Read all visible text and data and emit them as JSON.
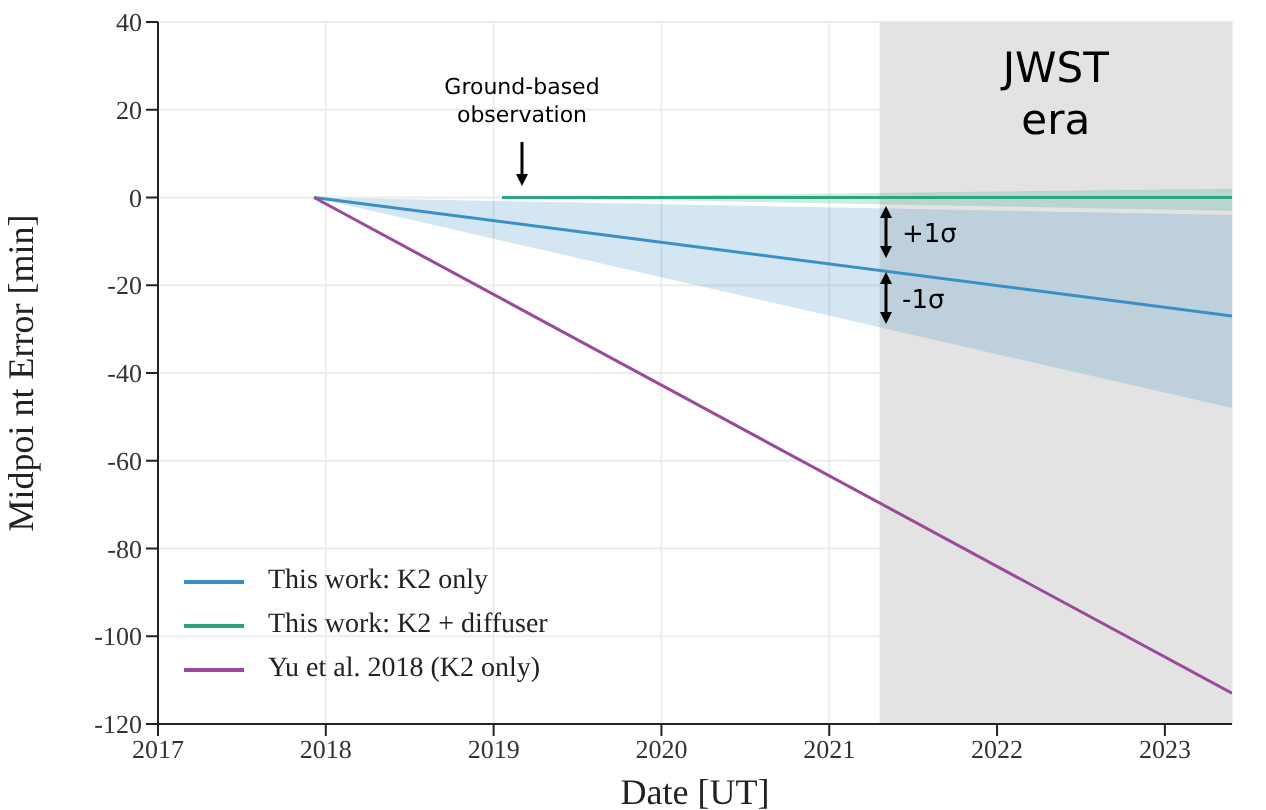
{
  "chart_data": {
    "type": "line",
    "xlabel": "Date [UT]",
    "ylabel": "Midpoi nt Error [min]",
    "xlim": [
      2017,
      2023.4
    ],
    "xticks": [
      2017,
      2018,
      2019,
      2020,
      2021,
      2022,
      2023
    ],
    "ylim": [
      -120,
      40
    ],
    "yticks": [
      -120,
      -100,
      -80,
      -60,
      -40,
      -20,
      0,
      20,
      40
    ],
    "grid": true,
    "legend": "bottom left",
    "marker": "none",
    "line_style": "solid",
    "series": [
      {
        "name": "This work: K2 only",
        "color": "#3a8fc4",
        "x": [
          2017.93,
          2023.4
        ],
        "values": [
          0,
          -27
        ],
        "lower": [
          0,
          -48
        ],
        "upper": [
          0,
          -4
        ]
      },
      {
        "name": "This work: K2 + diffuser",
        "color": "#2aa57f",
        "x": [
          2019.05,
          2023.4
        ],
        "values": [
          0,
          0
        ],
        "lower": [
          0,
          -3
        ],
        "upper": [
          0,
          2
        ]
      },
      {
        "name": "Yu et al. 2018 (K2 only)",
        "color": "#9b4a9b",
        "x": [
          2017.93,
          2023.4
        ],
        "values": [
          0,
          -113
        ]
      }
    ],
    "bands": [
      {
        "axis": "x",
        "from": 2021.3,
        "to": 2023.4,
        "label": "JWST era",
        "color": "#e3e3e3"
      }
    ],
    "annotations": [
      "Ground-based observation",
      "+1σ",
      "-1σ"
    ]
  }
}
